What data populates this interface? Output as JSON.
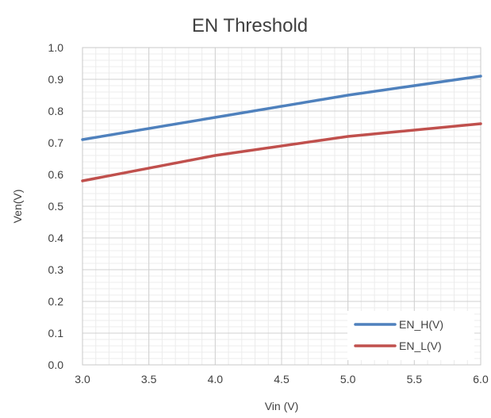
{
  "chart_data": {
    "type": "line",
    "title": "EN Threshold",
    "xlabel": "Vin (V)",
    "ylabel": "Ven(V)",
    "xlim": [
      3.0,
      6.0
    ],
    "ylim": [
      0.0,
      1.0
    ],
    "x_ticks": [
      "3.0",
      "3.5",
      "4.0",
      "4.5",
      "5.0",
      "5.5",
      "6.0"
    ],
    "y_ticks": [
      "0.0",
      "0.1",
      "0.2",
      "0.3",
      "0.4",
      "0.5",
      "0.6",
      "0.7",
      "0.8",
      "0.9",
      "1.0"
    ],
    "grid": true,
    "legend_position": "bottom-right",
    "x": [
      3.0,
      4.0,
      5.0,
      6.0
    ],
    "series": [
      {
        "name": "EN_H(V)",
        "color": "#4F81BD",
        "values": [
          0.71,
          0.78,
          0.85,
          0.91
        ]
      },
      {
        "name": "EN_L(V)",
        "color": "#C0504D",
        "values": [
          0.58,
          0.66,
          0.72,
          0.76
        ]
      }
    ]
  }
}
